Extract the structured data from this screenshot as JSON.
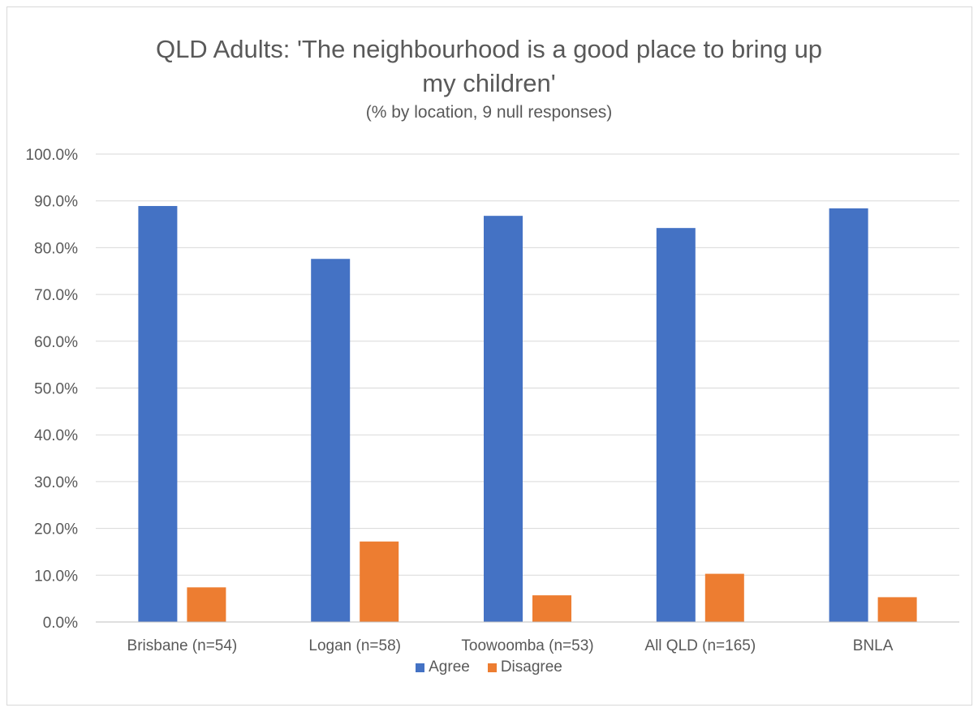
{
  "chart_data": {
    "type": "bar",
    "title": "QLD Adults: 'The neighbourhood is a good place to bring up my children'",
    "title_lines": [
      "QLD Adults: 'The neighbourhood is a good place to bring up",
      "my children'"
    ],
    "subtitle": "(% by location, 9 null responses)",
    "categories": [
      "Brisbane (n=54)",
      "Logan (n=58)",
      "Toowoomba (n=53)",
      "All QLD (n=165)",
      "BNLA"
    ],
    "series": [
      {
        "name": "Agree",
        "color": "#4472c4",
        "values": [
          88.9,
          77.6,
          86.8,
          84.2,
          88.4
        ]
      },
      {
        "name": "Disagree",
        "color": "#ed7d31",
        "values": [
          7.4,
          17.2,
          5.7,
          10.3,
          5.3
        ]
      }
    ],
    "ylim": [
      0,
      100
    ],
    "yticks": [
      0,
      10,
      20,
      30,
      40,
      50,
      60,
      70,
      80,
      90,
      100
    ],
    "ytick_labels": [
      "0.0%",
      "10.0%",
      "20.0%",
      "30.0%",
      "40.0%",
      "50.0%",
      "60.0%",
      "70.0%",
      "80.0%",
      "90.0%",
      "100.0%"
    ],
    "grid": true,
    "legend_position": "bottom"
  }
}
